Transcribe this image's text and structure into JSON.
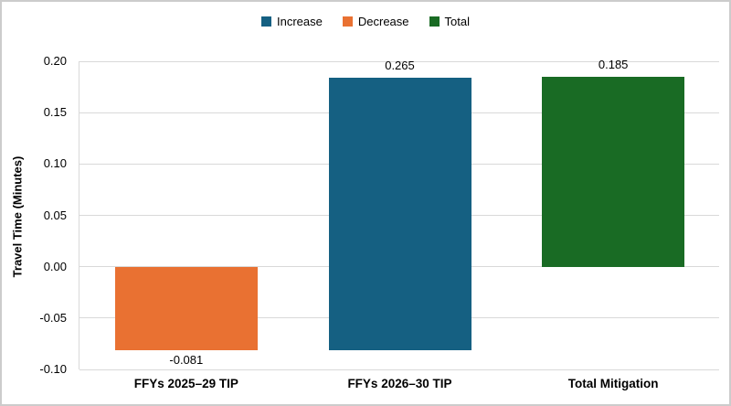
{
  "figure": {
    "background": "#FFFFFF",
    "border_color": "#CCCCCC",
    "gridline_color": "#D9D9D9"
  },
  "legend": {
    "position": "top-center",
    "items": [
      {
        "key": "increase",
        "label": "Increase",
        "color": "#156082"
      },
      {
        "key": "decrease",
        "label": "Decrease",
        "color": "#E97132"
      },
      {
        "key": "total",
        "label": "Total",
        "color": "#196B24"
      }
    ]
  },
  "chart_data": {
    "type": "bar",
    "subtype": "waterfall",
    "title": "",
    "xlabel": "",
    "ylabel": "Travel Time (Minutes)",
    "ylim": [
      -0.1,
      0.2
    ],
    "grid": true,
    "legend_position": "top",
    "categories": [
      "FFYs 2025–29 TIP",
      "FFYs 2026–30 TIP",
      "Total Mitigation"
    ],
    "yticks": [
      {
        "v": 0.2,
        "label": "0.20"
      },
      {
        "v": 0.15,
        "label": "0.15"
      },
      {
        "v": 0.1,
        "label": "0.10"
      },
      {
        "v": 0.05,
        "label": "0.05"
      },
      {
        "v": 0.0,
        "label": "0.00"
      },
      {
        "v": -0.05,
        "label": "-0.05"
      },
      {
        "v": -0.1,
        "label": "-0.10"
      }
    ],
    "bars": [
      {
        "category": "FFYs 2025–29 TIP",
        "series": "Decrease",
        "key": "decrease",
        "value": -0.081,
        "base": 0,
        "end": -0.081,
        "data_label": "-0.081",
        "label_position": "below",
        "color": "#E97132"
      },
      {
        "category": "FFYs 2026–30 TIP",
        "series": "Increase",
        "key": "increase",
        "value": 0.265,
        "base": -0.081,
        "end": 0.184,
        "data_label": "0.265",
        "label_position": "above",
        "color": "#156082"
      },
      {
        "category": "Total Mitigation",
        "series": "Total",
        "key": "total",
        "value": 0.185,
        "base": 0,
        "end": 0.185,
        "data_label": "0.185",
        "label_position": "above",
        "color": "#196B24"
      }
    ]
  }
}
